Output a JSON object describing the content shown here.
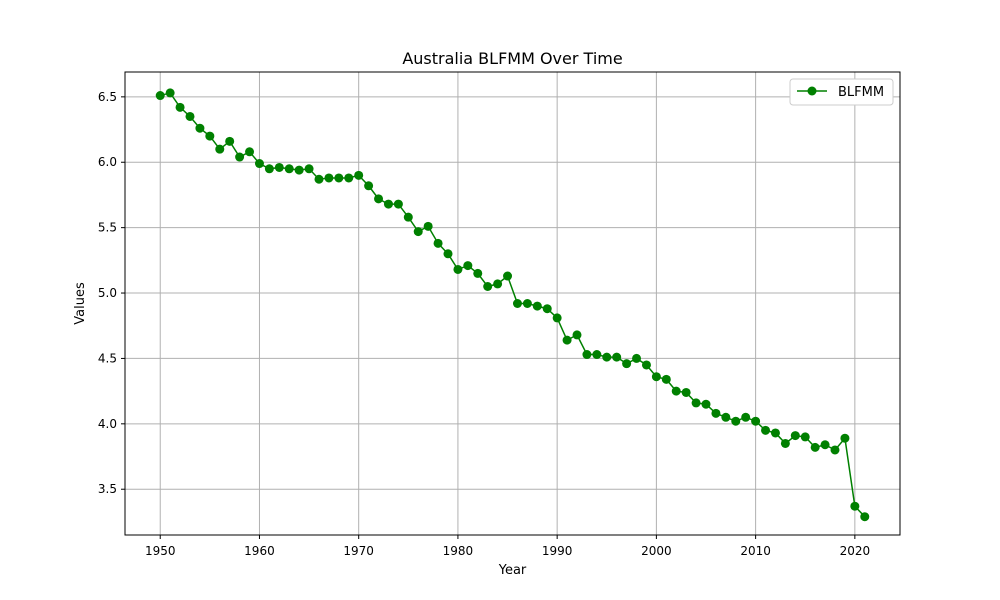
{
  "chart_data": {
    "type": "line",
    "title": "Australia BLFMM Over Time",
    "xlabel": "Year",
    "ylabel": "Values",
    "xlim": [
      1946.45,
      2024.55
    ],
    "ylim": [
      3.15,
      6.69
    ],
    "xticks": [
      1950,
      1960,
      1970,
      1980,
      1990,
      2000,
      2010,
      2020
    ],
    "yticks": [
      3.5,
      4.0,
      4.5,
      5.0,
      5.5,
      6.0,
      6.5
    ],
    "ytick_labels": [
      "3.5",
      "4.0",
      "4.5",
      "5.0",
      "5.5",
      "6.0",
      "6.5"
    ],
    "grid": true,
    "legend_position": "top-right",
    "series": [
      {
        "name": "BLFMM",
        "color": "#008000",
        "marker": "circle",
        "x": [
          1950,
          1951,
          1952,
          1953,
          1954,
          1955,
          1956,
          1957,
          1958,
          1959,
          1960,
          1961,
          1962,
          1963,
          1964,
          1965,
          1966,
          1967,
          1968,
          1969,
          1970,
          1971,
          1972,
          1973,
          1974,
          1975,
          1976,
          1977,
          1978,
          1979,
          1980,
          1981,
          1982,
          1983,
          1984,
          1985,
          1986,
          1987,
          1988,
          1989,
          1990,
          1991,
          1992,
          1993,
          1994,
          1995,
          1996,
          1997,
          1998,
          1999,
          2000,
          2001,
          2002,
          2003,
          2004,
          2005,
          2006,
          2007,
          2008,
          2009,
          2010,
          2011,
          2012,
          2013,
          2014,
          2015,
          2016,
          2017,
          2018,
          2019,
          2020,
          2021
        ],
        "y": [
          6.51,
          6.53,
          6.42,
          6.35,
          6.26,
          6.2,
          6.1,
          6.16,
          6.04,
          6.08,
          5.99,
          5.95,
          5.96,
          5.95,
          5.94,
          5.95,
          5.87,
          5.88,
          5.88,
          5.88,
          5.9,
          5.82,
          5.72,
          5.68,
          5.68,
          5.58,
          5.47,
          5.51,
          5.38,
          5.3,
          5.18,
          5.21,
          5.15,
          5.05,
          5.07,
          5.13,
          4.92,
          4.92,
          4.9,
          4.88,
          4.81,
          4.64,
          4.68,
          4.53,
          4.53,
          4.51,
          4.51,
          4.46,
          4.5,
          4.45,
          4.36,
          4.34,
          4.25,
          4.24,
          4.16,
          4.15,
          4.08,
          4.05,
          4.02,
          4.05,
          4.02,
          3.95,
          3.93,
          3.85,
          3.91,
          3.9,
          3.82,
          3.84,
          3.8,
          3.89,
          3.37,
          3.29
        ]
      }
    ]
  }
}
